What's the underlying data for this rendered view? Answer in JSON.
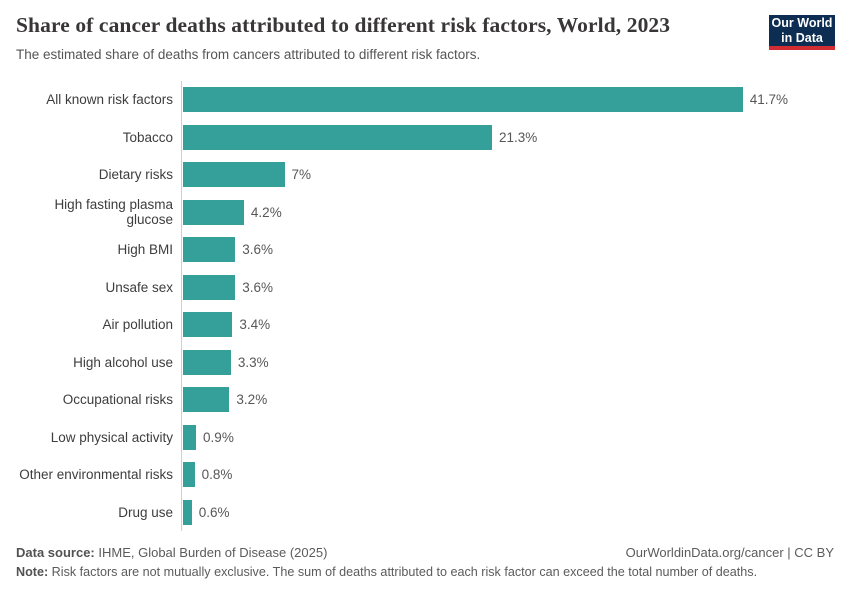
{
  "header": {
    "title": "Share of cancer deaths attributed to different risk factors, World, 2023",
    "subtitle": "The estimated share of deaths from cancers attributed to different risk factors.",
    "logo": {
      "line1": "Our World",
      "line2": "in Data"
    }
  },
  "chart_data": {
    "type": "bar",
    "orientation": "horizontal",
    "title": "Share of cancer deaths attributed to different risk factors, World, 2023",
    "categories": [
      "All known risk factors",
      "Tobacco",
      "Dietary risks",
      "High fasting plasma glucose",
      "High BMI",
      "Unsafe sex",
      "Air pollution",
      "High alcohol use",
      "Occupational risks",
      "Low physical activity",
      "Other environmental risks",
      "Drug use"
    ],
    "values": [
      41.7,
      21.3,
      7,
      4.2,
      3.6,
      3.6,
      3.4,
      3.3,
      3.2,
      0.9,
      0.8,
      0.6
    ],
    "value_labels": [
      "41.7%",
      "21.3%",
      "7%",
      "4.2%",
      "3.6%",
      "3.6%",
      "3.4%",
      "3.3%",
      "3.2%",
      "0.9%",
      "0.8%",
      "0.6%"
    ],
    "xlabel": "",
    "ylabel": "",
    "xlim": [
      0,
      41.7
    ],
    "grid": false,
    "legend": "none",
    "bar_color": "#35a09a",
    "axis_line_color": "#cfcfcf"
  },
  "footer": {
    "source_label": "Data source:",
    "source_text": " IHME, Global Burden of Disease (2025)",
    "link_text": "OurWorldinData.org/cancer | CC BY",
    "note_label": "Note:",
    "note_text": " Risk factors are not mutually exclusive. The sum of deaths attributed to each risk factor can exceed the total number of deaths."
  },
  "colors": {
    "bar": "#35a09a",
    "title_text": "#383636",
    "subtitle_text": "#555555",
    "logo_background": "#0d2e52",
    "logo_accent": "#d12d33",
    "axis_line": "#cfcfcf"
  }
}
